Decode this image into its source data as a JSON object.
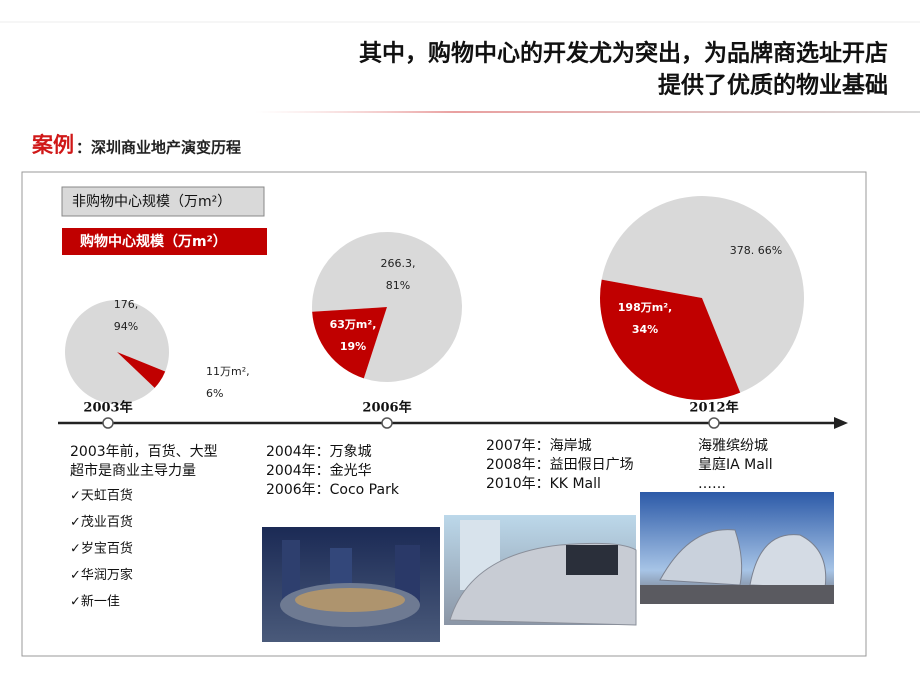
{
  "header": {
    "title_lines": [
      "其中，购物中心的开发尤为突出，为品牌商选址开店",
      "提供了优质的物业基础"
    ]
  },
  "case": {
    "tag": "案例",
    "subtitle": "：深圳商业地产演变历程"
  },
  "legend": [
    "非购物中心规模（万m²）",
    "购物中心规模（万m²）"
  ],
  "pies": [
    {
      "year": "2003年",
      "slices": [
        {
          "percent": 94,
          "label": [
            "176,",
            "94%"
          ]
        },
        {
          "percent": 6,
          "label": [
            "11万m²,",
            "6%"
          ]
        }
      ]
    },
    {
      "year": "2006年",
      "slices": [
        {
          "percent": 81,
          "label": [
            "266.3,",
            "81%"
          ]
        },
        {
          "percent": 19,
          "label": [
            "63万m²,",
            "19%"
          ]
        }
      ]
    },
    {
      "year": "2012年",
      "slices": [
        {
          "percent": 66,
          "label": [
            "378. 66%"
          ]
        },
        {
          "percent": 34,
          "label": [
            "198万m²,",
            "34%"
          ]
        }
      ]
    }
  ],
  "columns": [
    [
      "2003年前，百货、大型",
      "超市是商业主导力量",
      "✓天虹百货",
      "✓茂业百货",
      "✓岁宝百货",
      "✓华润万家",
      "✓新一佳"
    ],
    [
      "2004年：万象城",
      "2004年：金光华",
      "2006年：Coco Park"
    ],
    [
      "2007年：海岸城",
      "2008年：益田假日广场",
      "2010年：KK Mall"
    ],
    [
      "海雅缤纷城",
      "皇庭IA Mall",
      "……"
    ]
  ]
}
